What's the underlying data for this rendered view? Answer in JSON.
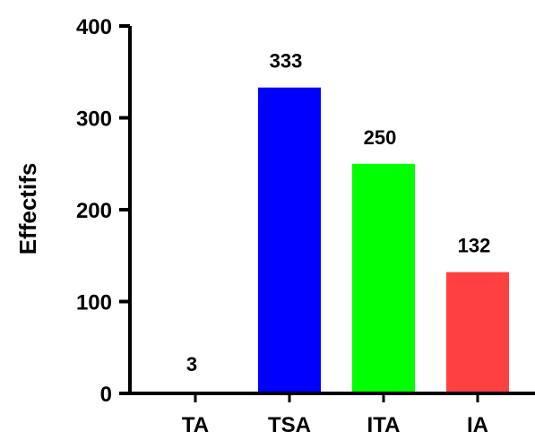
{
  "chart_data": {
    "type": "bar",
    "title": "",
    "xlabel": "",
    "ylabel": "Effectifs",
    "categories": [
      "TA",
      "TSA",
      "ITA",
      "IA"
    ],
    "values": [
      3,
      333,
      250,
      132
    ],
    "data_labels": [
      "3",
      "333",
      "250",
      "132"
    ],
    "colors": [
      "#ffffff",
      "#0000ff",
      "#00ff00",
      "#ff4040"
    ],
    "ylim": [
      0,
      400
    ],
    "yticks": [
      0,
      100,
      200,
      300,
      400
    ],
    "ytick_labels": [
      "0",
      "100",
      "200",
      "300",
      "400"
    ],
    "grid": false,
    "legend": "none"
  }
}
